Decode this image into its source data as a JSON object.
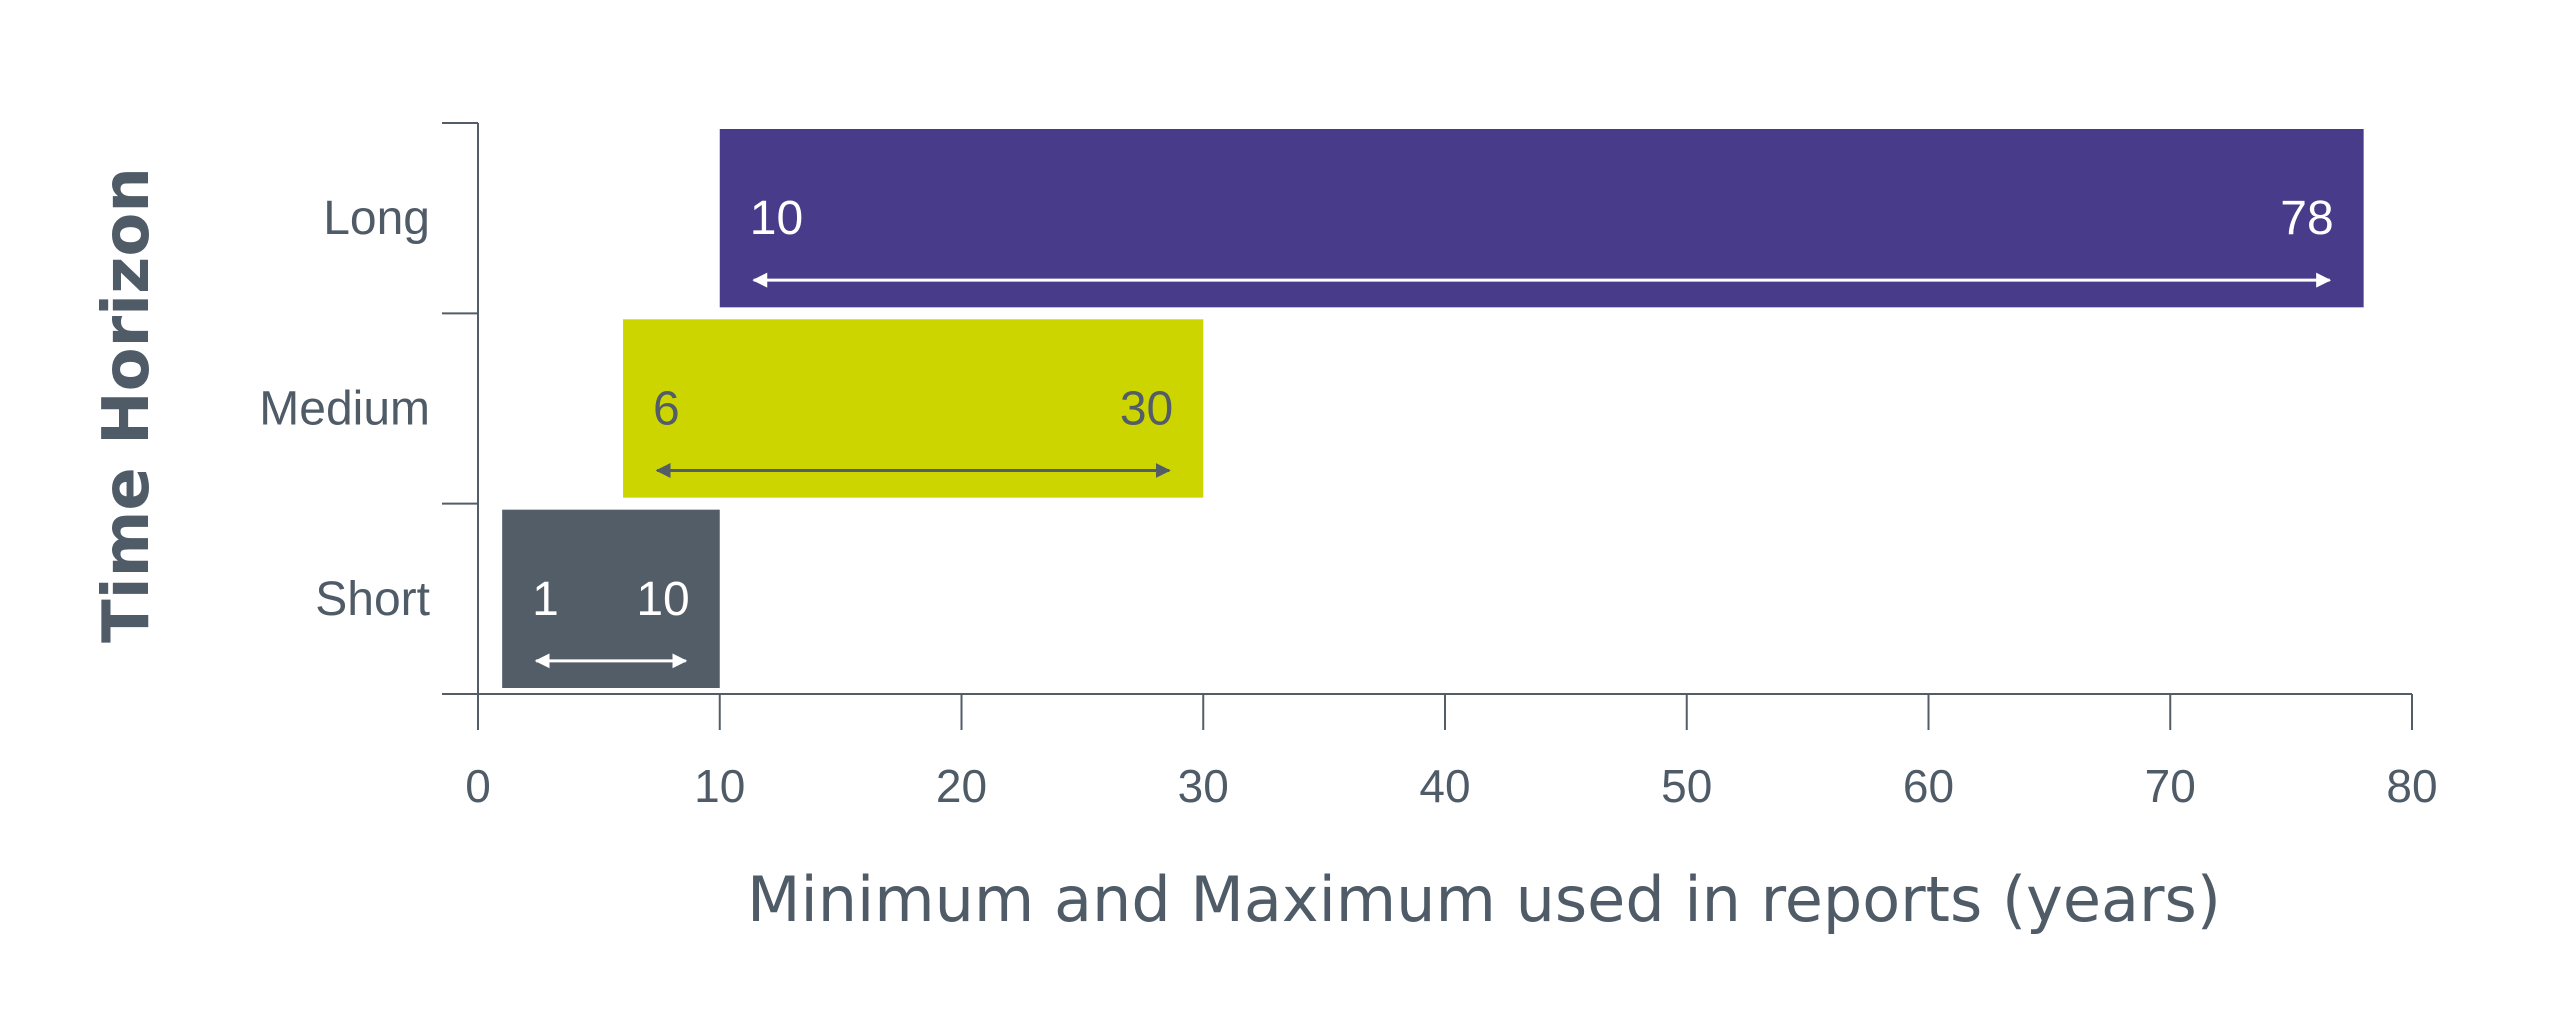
{
  "chart_data": {
    "type": "bar",
    "orientation": "horizontal",
    "style": "floating-range",
    "categories": [
      "Short",
      "Medium",
      "Long"
    ],
    "series": [
      {
        "ranges": [
          {
            "category": "Short",
            "min": 1,
            "max": 10
          },
          {
            "category": "Medium",
            "min": 6,
            "max": 30
          },
          {
            "category": "Long",
            "min": 10,
            "max": 78
          }
        ]
      }
    ],
    "colors": {
      "Short": "#525d68",
      "Medium": "#ccd500",
      "Long": "#483b8a"
    },
    "label_colors": {
      "Short": "#ffffff",
      "Medium": "#525d68",
      "Long": "#ffffff"
    },
    "xlabel": "Minimum and Maximum used in reports (years)",
    "ylabel": "Time Horizon",
    "xlim": [
      0,
      80
    ],
    "xticks": [
      0,
      10,
      20,
      30,
      40,
      50,
      60,
      70,
      80
    ],
    "grid": false,
    "axis_color": "#525d68"
  }
}
